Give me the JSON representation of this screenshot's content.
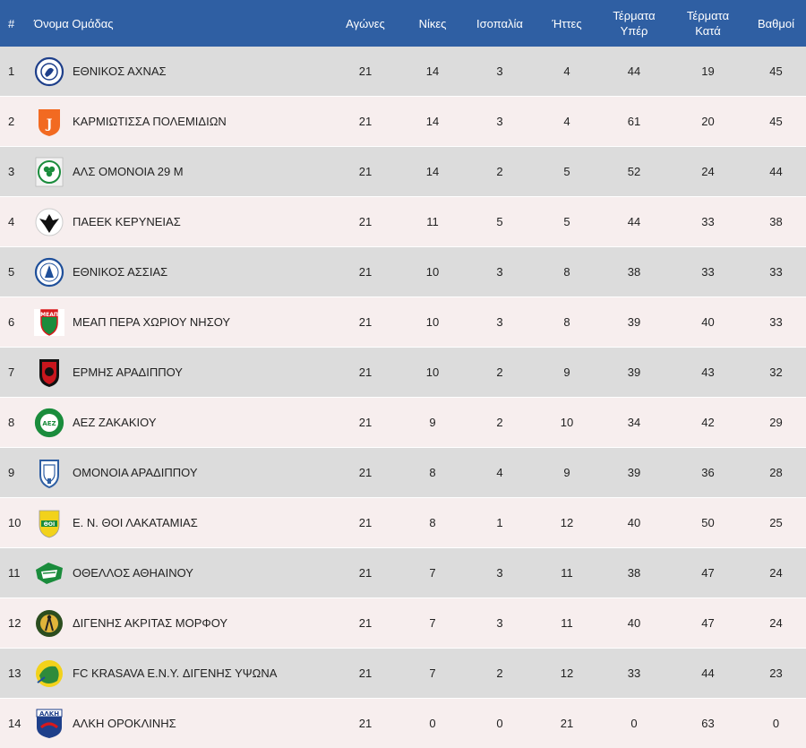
{
  "table": {
    "headers": {
      "rank": "#",
      "team": "Όνομα Ομάδας",
      "played": "Αγώνες",
      "wins": "Νίκες",
      "draws": "Ισοπαλία",
      "losses": "Ήττες",
      "goals_for_line1": "Τέρματα",
      "goals_for_line2": "Υπέρ",
      "goals_against_line1": "Τέρματα",
      "goals_against_line2": "Κατά",
      "points": "Βαθμοί"
    },
    "rows": [
      {
        "rank": "1",
        "team": "ΕΘΝΙΚΟΣ ΑΧΝΑΣ",
        "played": "21",
        "wins": "14",
        "draws": "3",
        "losses": "4",
        "goals_for": "44",
        "goals_against": "19",
        "points": "45"
      },
      {
        "rank": "2",
        "team": "ΚΑΡΜΙΩΤΙΣΣΑ ΠΟΛΕΜΙΔΙΩΝ",
        "played": "21",
        "wins": "14",
        "draws": "3",
        "losses": "4",
        "goals_for": "61",
        "goals_against": "20",
        "points": "45"
      },
      {
        "rank": "3",
        "team": "ΑΛΣ ΟΜΟΝΟΙΑ 29 Μ",
        "played": "21",
        "wins": "14",
        "draws": "2",
        "losses": "5",
        "goals_for": "52",
        "goals_against": "24",
        "points": "44"
      },
      {
        "rank": "4",
        "team": "ΠΑΕΕΚ ΚΕΡΥΝΕΙΑΣ",
        "played": "21",
        "wins": "11",
        "draws": "5",
        "losses": "5",
        "goals_for": "44",
        "goals_against": "33",
        "points": "38"
      },
      {
        "rank": "5",
        "team": "ΕΘΝΙΚΟΣ ΑΣΣΙΑΣ",
        "played": "21",
        "wins": "10",
        "draws": "3",
        "losses": "8",
        "goals_for": "38",
        "goals_against": "33",
        "points": "33"
      },
      {
        "rank": "6",
        "team": "ΜΕΑΠ ΠΕΡΑ ΧΩΡΙΟΥ ΝΗΣΟΥ",
        "played": "21",
        "wins": "10",
        "draws": "3",
        "losses": "8",
        "goals_for": "39",
        "goals_against": "40",
        "points": "33"
      },
      {
        "rank": "7",
        "team": "ΕΡΜΗΣ ΑΡΑΔΙΠΠΟΥ",
        "played": "21",
        "wins": "10",
        "draws": "2",
        "losses": "9",
        "goals_for": "39",
        "goals_against": "43",
        "points": "32"
      },
      {
        "rank": "8",
        "team": "ΑΕΖ ΖΑΚΑΚΙΟΥ",
        "played": "21",
        "wins": "9",
        "draws": "2",
        "losses": "10",
        "goals_for": "34",
        "goals_against": "42",
        "points": "29"
      },
      {
        "rank": "9",
        "team": "ΟΜΟΝΟΙΑ ΑΡΑΔΙΠΠΟΥ",
        "played": "21",
        "wins": "8",
        "draws": "4",
        "losses": "9",
        "goals_for": "39",
        "goals_against": "36",
        "points": "28"
      },
      {
        "rank": "10",
        "team": "Ε. Ν. ΘΟΙ ΛΑΚΑΤΑΜΙΑΣ",
        "played": "21",
        "wins": "8",
        "draws": "1",
        "losses": "12",
        "goals_for": "40",
        "goals_against": "50",
        "points": "25"
      },
      {
        "rank": "11",
        "team": "ΟΘΕΛΛΟΣ ΑΘΗΑΙΝΟΥ",
        "played": "21",
        "wins": "7",
        "draws": "3",
        "losses": "11",
        "goals_for": "38",
        "goals_against": "47",
        "points": "24"
      },
      {
        "rank": "12",
        "team": "ΔΙΓΕΝΗΣ ΑΚΡΙΤΑΣ ΜΟΡΦΟΥ",
        "played": "21",
        "wins": "7",
        "draws": "3",
        "losses": "11",
        "goals_for": "40",
        "goals_against": "47",
        "points": "24"
      },
      {
        "rank": "13",
        "team": "FC KRASAVA E.N.Y. ΔΙΓΕΝΗΣ ΥΨΩΝΑ",
        "played": "21",
        "wins": "7",
        "draws": "2",
        "losses": "12",
        "goals_for": "33",
        "goals_against": "44",
        "points": "23"
      },
      {
        "rank": "14",
        "team": "ΑΛΚΗ ΟΡΟΚΛΙΝΗΣ",
        "played": "21",
        "wins": "0",
        "draws": "0",
        "losses": "21",
        "goals_for": "0",
        "goals_against": "63",
        "points": "0"
      }
    ]
  },
  "logos": [
    {
      "icon": "ethnikos-achnas-crest-icon",
      "primary": "#1e3f8a",
      "secondary": "#ffffff"
    },
    {
      "icon": "karmiotissa-crest-icon",
      "primary": "#f26a21",
      "secondary": "#ffffff"
    },
    {
      "icon": "omonoia-29m-clover-icon",
      "primary": "#1a8c3c",
      "secondary": "#ffffff"
    },
    {
      "icon": "paeek-eagle-icon",
      "primary": "#111111",
      "secondary": "#ffffff"
    },
    {
      "icon": "ethnikos-assias-crest-icon",
      "primary": "#1e4f9a",
      "secondary": "#ffffff"
    },
    {
      "icon": "meap-crest-icon",
      "primary": "#d7191c",
      "secondary": "#1a8c3c"
    },
    {
      "icon": "ermis-shield-icon",
      "primary": "#c8161d",
      "secondary": "#111111"
    },
    {
      "icon": "aez-zakakiou-crest-icon",
      "primary": "#1a8c3c",
      "secondary": "#ffffff"
    },
    {
      "icon": "omonoia-aradippou-shield-icon",
      "primary": "#2f5fa3",
      "secondary": "#ffffff"
    },
    {
      "icon": "thoi-lakatamias-shield-icon",
      "primary": "#f2d21b",
      "secondary": "#1a8c3c"
    },
    {
      "icon": "othellos-athienou-crest-icon",
      "primary": "#1a8c3c",
      "secondary": "#ffffff"
    },
    {
      "icon": "digenis-morfou-crest-icon",
      "primary": "#2b4d1f",
      "secondary": "#e0b43a"
    },
    {
      "icon": "krasava-crest-icon",
      "primary": "#f2d21b",
      "secondary": "#2e8b3b"
    },
    {
      "icon": "alki-oroklinis-crest-icon",
      "primary": "#1e3f8a",
      "secondary": "#d7191c"
    }
  ]
}
